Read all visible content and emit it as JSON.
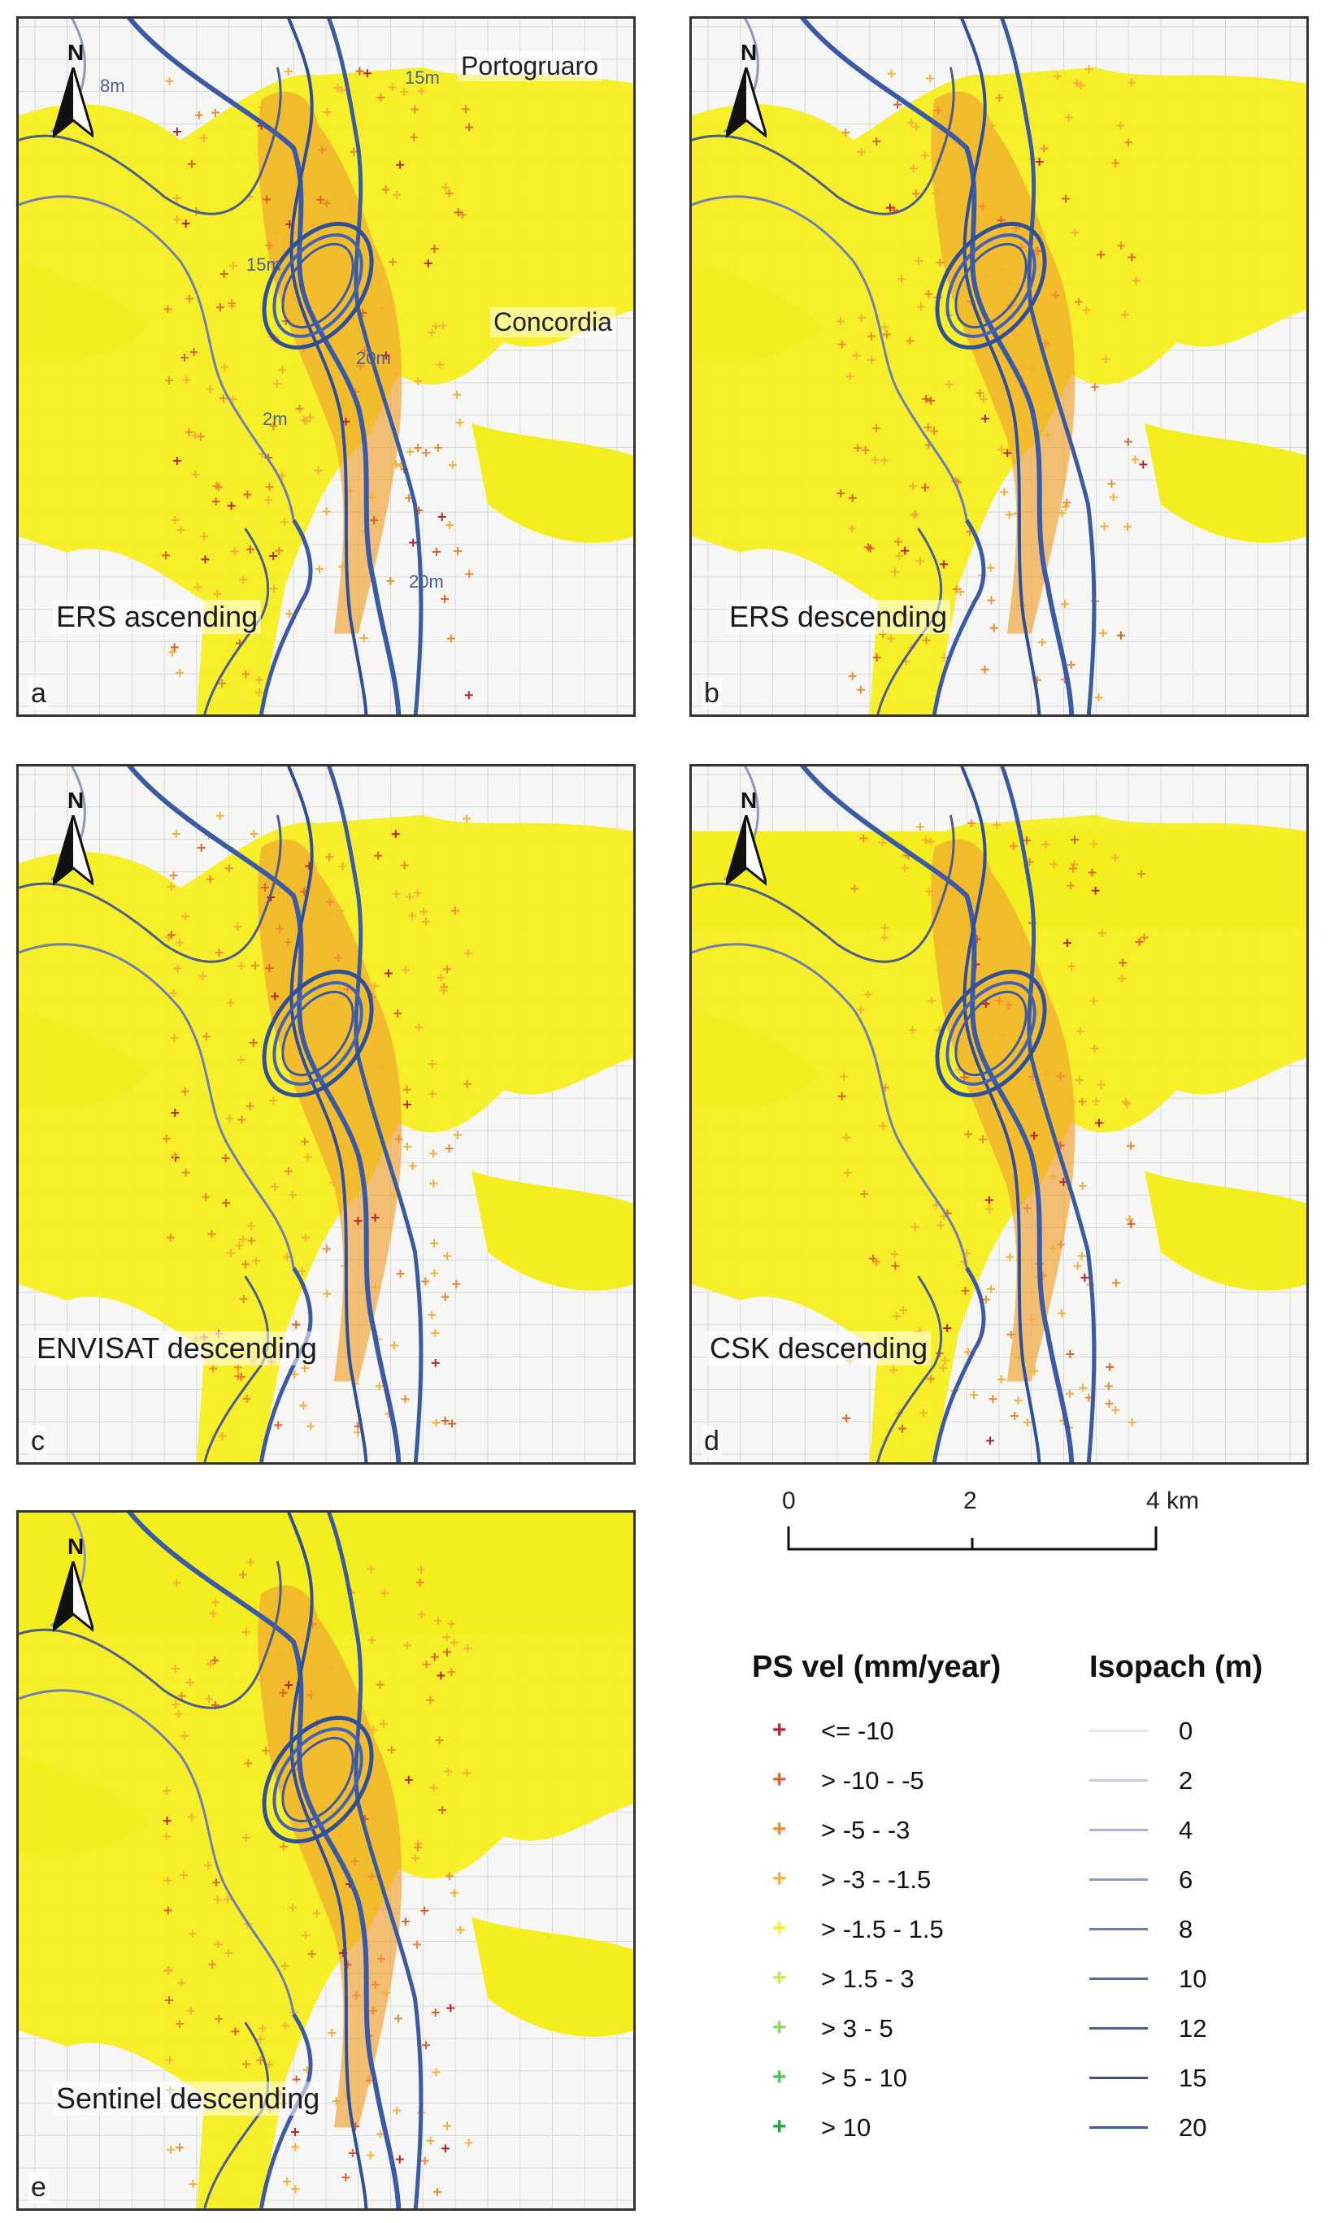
{
  "panels": [
    {
      "letter": "a",
      "title": "ERS ascending"
    },
    {
      "letter": "b",
      "title": "ERS descending"
    },
    {
      "letter": "c",
      "title": "ENVISAT descending"
    },
    {
      "letter": "d",
      "title": "CSK descending"
    },
    {
      "letter": "e",
      "title": "Sentinel descending"
    }
  ],
  "north_label": "N",
  "place_labels": {
    "portogruaro": "Portogruaro",
    "concordia": "Concordia"
  },
  "isopach_labels": [
    "8m",
    "15m",
    "15m",
    "20m",
    "2m",
    "20m"
  ],
  "scale_bar": {
    "ticks": [
      "0",
      "2",
      "4 km"
    ]
  },
  "ps_legend": {
    "title": "PS vel (mm/year)",
    "classes": [
      {
        "label": "<= -10",
        "color": "#c0202a"
      },
      {
        "label": "> -10 - -5",
        "color": "#e0602a"
      },
      {
        "label": "> -5 - -3",
        "color": "#f08a30"
      },
      {
        "label": "> -3 - -1.5",
        "color": "#f5b035"
      },
      {
        "label": "> -1.5 - 1.5",
        "color": "#f2ee35"
      },
      {
        "label": "> 1.5 - 3",
        "color": "#c4e850"
      },
      {
        "label": "> 3 - 5",
        "color": "#8ed860"
      },
      {
        "label": "> 5 - 10",
        "color": "#4cc658"
      },
      {
        "label": "> 10",
        "color": "#1aa640"
      }
    ]
  },
  "isopach_legend": {
    "title": "Isopach (m)",
    "levels": [
      {
        "label": "0",
        "color": "#e2e4ee"
      },
      {
        "label": "2",
        "color": "#c9cde0"
      },
      {
        "label": "4",
        "color": "#a9b2cf"
      },
      {
        "label": "6",
        "color": "#8c98bd"
      },
      {
        "label": "8",
        "color": "#707ea9"
      },
      {
        "label": "10",
        "color": "#5a6a98"
      },
      {
        "label": "12",
        "color": "#4b5e8d"
      },
      {
        "label": "15",
        "color": "#3e5282"
      },
      {
        "label": "20",
        "color": "#3a5aa8"
      }
    ]
  }
}
